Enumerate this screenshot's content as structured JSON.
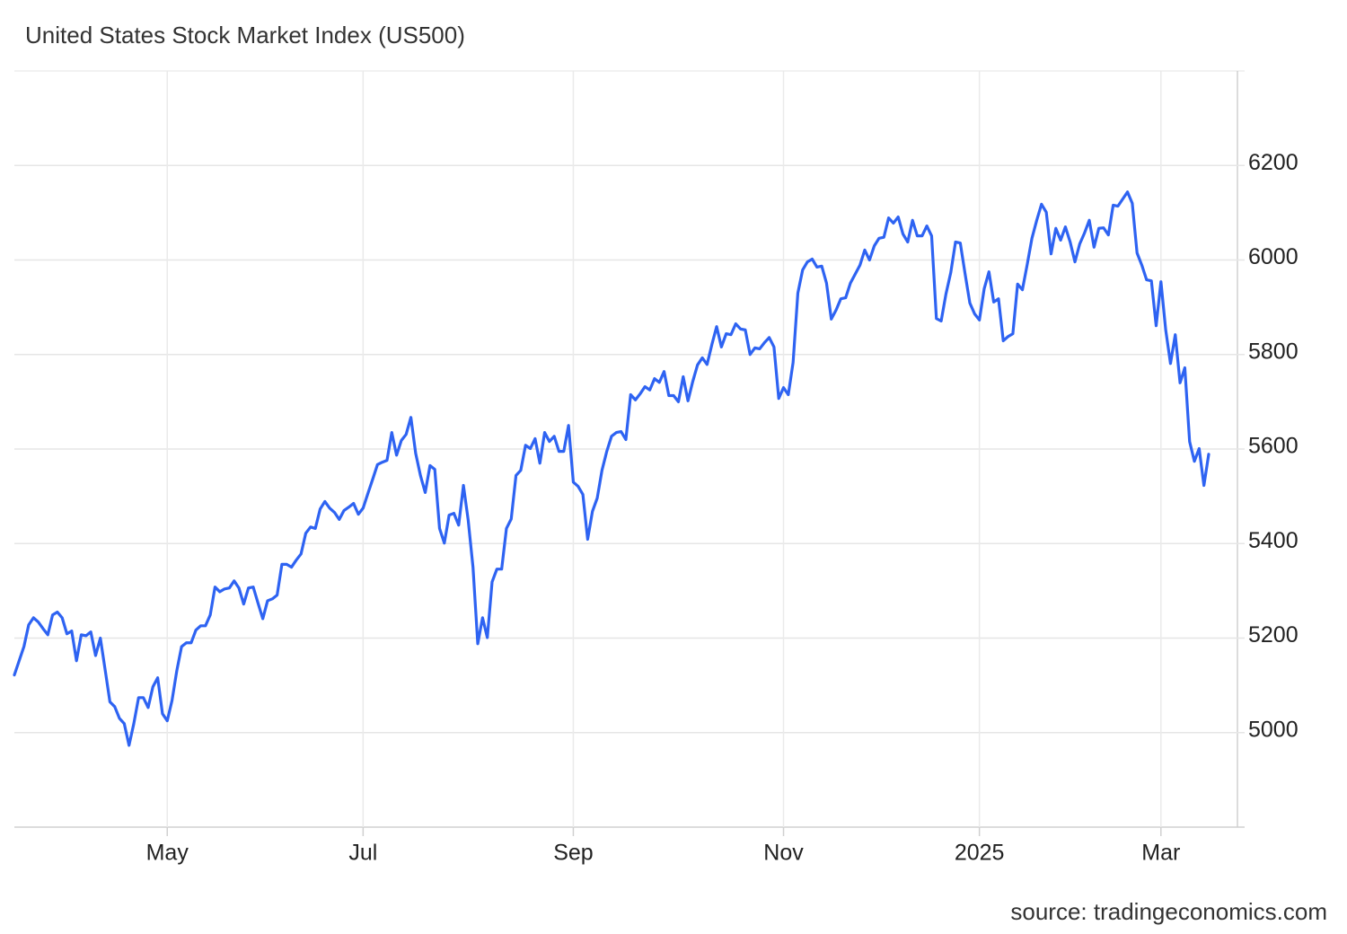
{
  "chart_data": {
    "type": "line",
    "title": "United States Stock Market Index (US500)",
    "source": "source: tradingeconomics.com",
    "color": "#2e63f2",
    "grid": true,
    "ylim": [
      4800,
      6400
    ],
    "yticks": [
      5000,
      5200,
      5400,
      5600,
      5800,
      6000,
      6200
    ],
    "categories": [
      null,
      null,
      null,
      null,
      null,
      null,
      null,
      null,
      null,
      null,
      null,
      null,
      null,
      null,
      null,
      null,
      null,
      null,
      null,
      null,
      null,
      null,
      null,
      null,
      null,
      null,
      null,
      null,
      null,
      null,
      null,
      null,
      "May",
      null,
      null,
      null,
      null,
      null,
      null,
      null,
      null,
      null,
      null,
      null,
      null,
      null,
      null,
      null,
      null,
      null,
      null,
      null,
      null,
      null,
      null,
      null,
      null,
      null,
      null,
      null,
      null,
      null,
      null,
      null,
      null,
      null,
      null,
      null,
      null,
      null,
      null,
      null,
      null,
      "Jul",
      null,
      null,
      null,
      null,
      null,
      null,
      null,
      null,
      null,
      null,
      null,
      null,
      null,
      null,
      null,
      null,
      null,
      null,
      null,
      null,
      null,
      null,
      null,
      null,
      null,
      null,
      null,
      null,
      null,
      null,
      null,
      null,
      null,
      null,
      null,
      null,
      null,
      null,
      null,
      null,
      null,
      null,
      null,
      "Sep",
      null,
      null,
      null,
      null,
      null,
      null,
      null,
      null,
      null,
      null,
      null,
      null,
      null,
      null,
      null,
      null,
      null,
      null,
      null,
      null,
      null,
      null,
      null,
      null,
      null,
      null,
      null,
      null,
      null,
      null,
      null,
      null,
      null,
      null,
      null,
      null,
      null,
      null,
      null,
      null,
      null,
      null,
      null,
      "Nov",
      null,
      null,
      null,
      null,
      null,
      null,
      null,
      null,
      null,
      null,
      null,
      null,
      null,
      null,
      null,
      null,
      null,
      null,
      null,
      null,
      null,
      null,
      null,
      null,
      null,
      null,
      null,
      null,
      null,
      null,
      null,
      null,
      null,
      null,
      null,
      null,
      null,
      null,
      null,
      null,
      "2025",
      null,
      null,
      null,
      null,
      null,
      null,
      null,
      null,
      null,
      null,
      null,
      null,
      null,
      null,
      null,
      null,
      null,
      null,
      null,
      null,
      null,
      null,
      null,
      null,
      null,
      null,
      null,
      null,
      null,
      null,
      null,
      null,
      null,
      null,
      null,
      null,
      null,
      "Mar",
      null,
      null,
      null,
      null,
      null,
      null,
      null,
      null,
      null,
      null
    ],
    "values": [
      5122,
      5152,
      5182,
      5228,
      5243,
      5234,
      5220,
      5207,
      5249,
      5255,
      5243,
      5209,
      5215,
      5152,
      5207,
      5205,
      5213,
      5163,
      5200,
      5133,
      5065,
      5055,
      5030,
      5019,
      4973,
      5019,
      5074,
      5074,
      5053,
      5097,
      5116,
      5040,
      5025,
      5068,
      5131,
      5182,
      5190,
      5190,
      5217,
      5226,
      5226,
      5249,
      5308,
      5298,
      5304,
      5306,
      5321,
      5306,
      5272,
      5306,
      5308,
      5274,
      5241,
      5279,
      5283,
      5291,
      5356,
      5356,
      5350,
      5365,
      5378,
      5422,
      5435,
      5432,
      5473,
      5489,
      5475,
      5466,
      5451,
      5470,
      5477,
      5485,
      5462,
      5475,
      5506,
      5536,
      5567,
      5572,
      5576,
      5635,
      5587,
      5618,
      5631,
      5667,
      5591,
      5544,
      5508,
      5565,
      5557,
      5432,
      5401,
      5460,
      5464,
      5439,
      5523,
      5449,
      5350,
      5188,
      5243,
      5201,
      5319,
      5346,
      5346,
      5432,
      5452,
      5544,
      5555,
      5608,
      5601,
      5622,
      5570,
      5635,
      5616,
      5627,
      5595,
      5595,
      5650,
      5530,
      5521,
      5504,
      5409,
      5468,
      5496,
      5555,
      5595,
      5627,
      5635,
      5637,
      5620,
      5715,
      5704,
      5717,
      5732,
      5725,
      5749,
      5741,
      5764,
      5713,
      5713,
      5700,
      5753,
      5702,
      5743,
      5778,
      5793,
      5779,
      5821,
      5859,
      5816,
      5844,
      5842,
      5865,
      5854,
      5852,
      5800,
      5814,
      5812,
      5825,
      5836,
      5816,
      5707,
      5730,
      5715,
      5783,
      5930,
      5979,
      5996,
      6002,
      5985,
      5987,
      5951,
      5875,
      5894,
      5918,
      5920,
      5951,
      5970,
      5989,
      6021,
      6000,
      6030,
      6046,
      6048,
      6089,
      6078,
      6091,
      6055,
      6038,
      6084,
      6051,
      6051,
      6072,
      6051,
      5876,
      5871,
      5928,
      5973,
      6038,
      6036,
      5971,
      5909,
      5886,
      5873,
      5939,
      5975,
      5911,
      5918,
      5829,
      5838,
      5844,
      5949,
      5937,
      5990,
      6046,
      6084,
      6118,
      6101,
      6013,
      6067,
      6042,
      6070,
      6038,
      5996,
      6034,
      6057,
      6084,
      6027,
      6067,
      6068,
      6053,
      6116,
      6114,
      6129,
      6144,
      6120,
      6015,
      5989,
      5958,
      5956,
      5861,
      5954,
      5852,
      5781,
      5842,
      5740,
      5772,
      5616,
      5574,
      5601,
      5523,
      5589
    ]
  }
}
